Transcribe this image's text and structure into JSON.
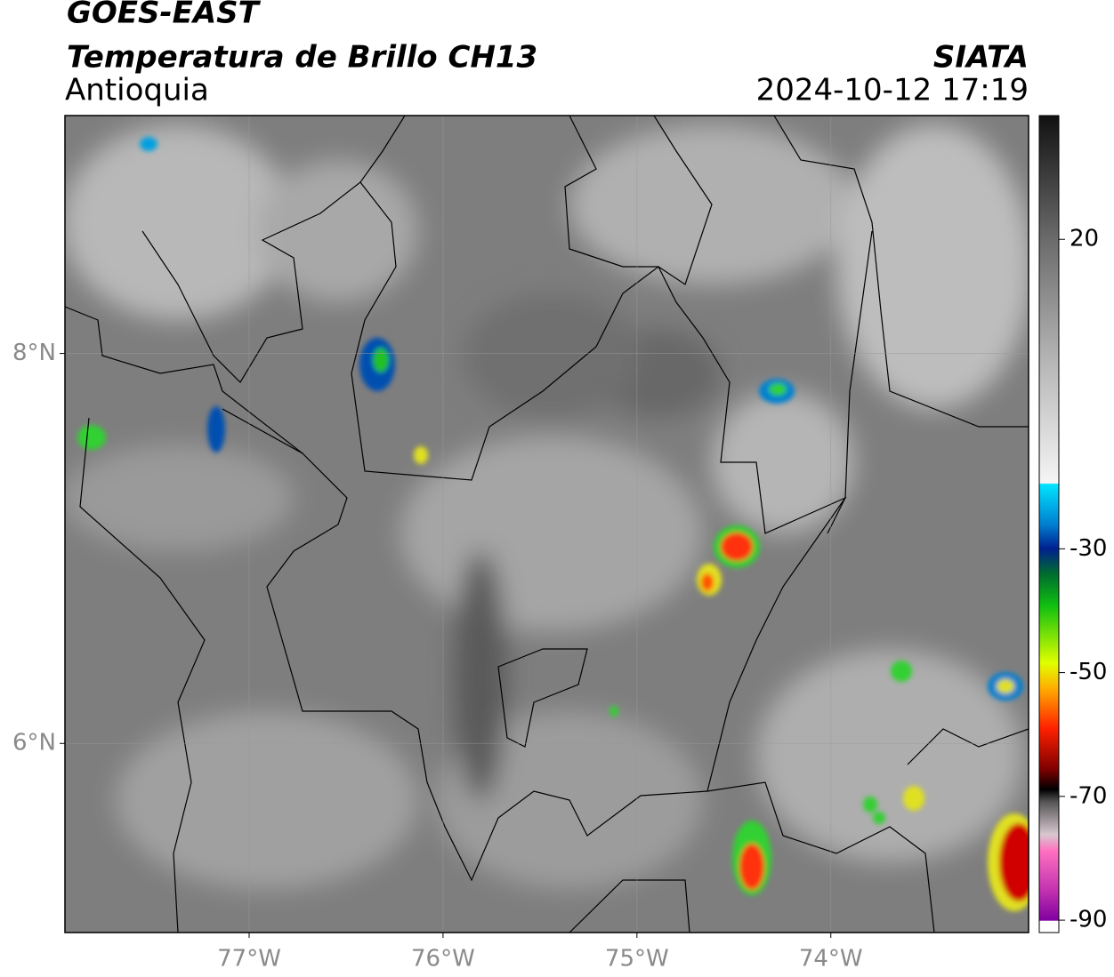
{
  "header": {
    "title": "GOES-EAST",
    "subtitle": "Temperatura de Brillo CH13",
    "region": "Antioquia",
    "source": "SIATA",
    "timestamp": "2024-10-12 17:19"
  },
  "map": {
    "xlim": [
      -77.95,
      -72.98
    ],
    "ylim": [
      5.03,
      9.22
    ],
    "xticks": [
      {
        "value": -77,
        "label": "77°W"
      },
      {
        "value": -76,
        "label": "76°W"
      },
      {
        "value": -75,
        "label": "75°W"
      },
      {
        "value": -74,
        "label": "74°W"
      }
    ],
    "yticks": [
      {
        "value": 6,
        "label": "6°N"
      },
      {
        "value": 8,
        "label": "8°N"
      }
    ],
    "grid": true
  },
  "colorbar": {
    "lim": [
      -92,
      40
    ],
    "ticks": [
      20,
      -30,
      -50,
      -70,
      -90
    ]
  }
}
